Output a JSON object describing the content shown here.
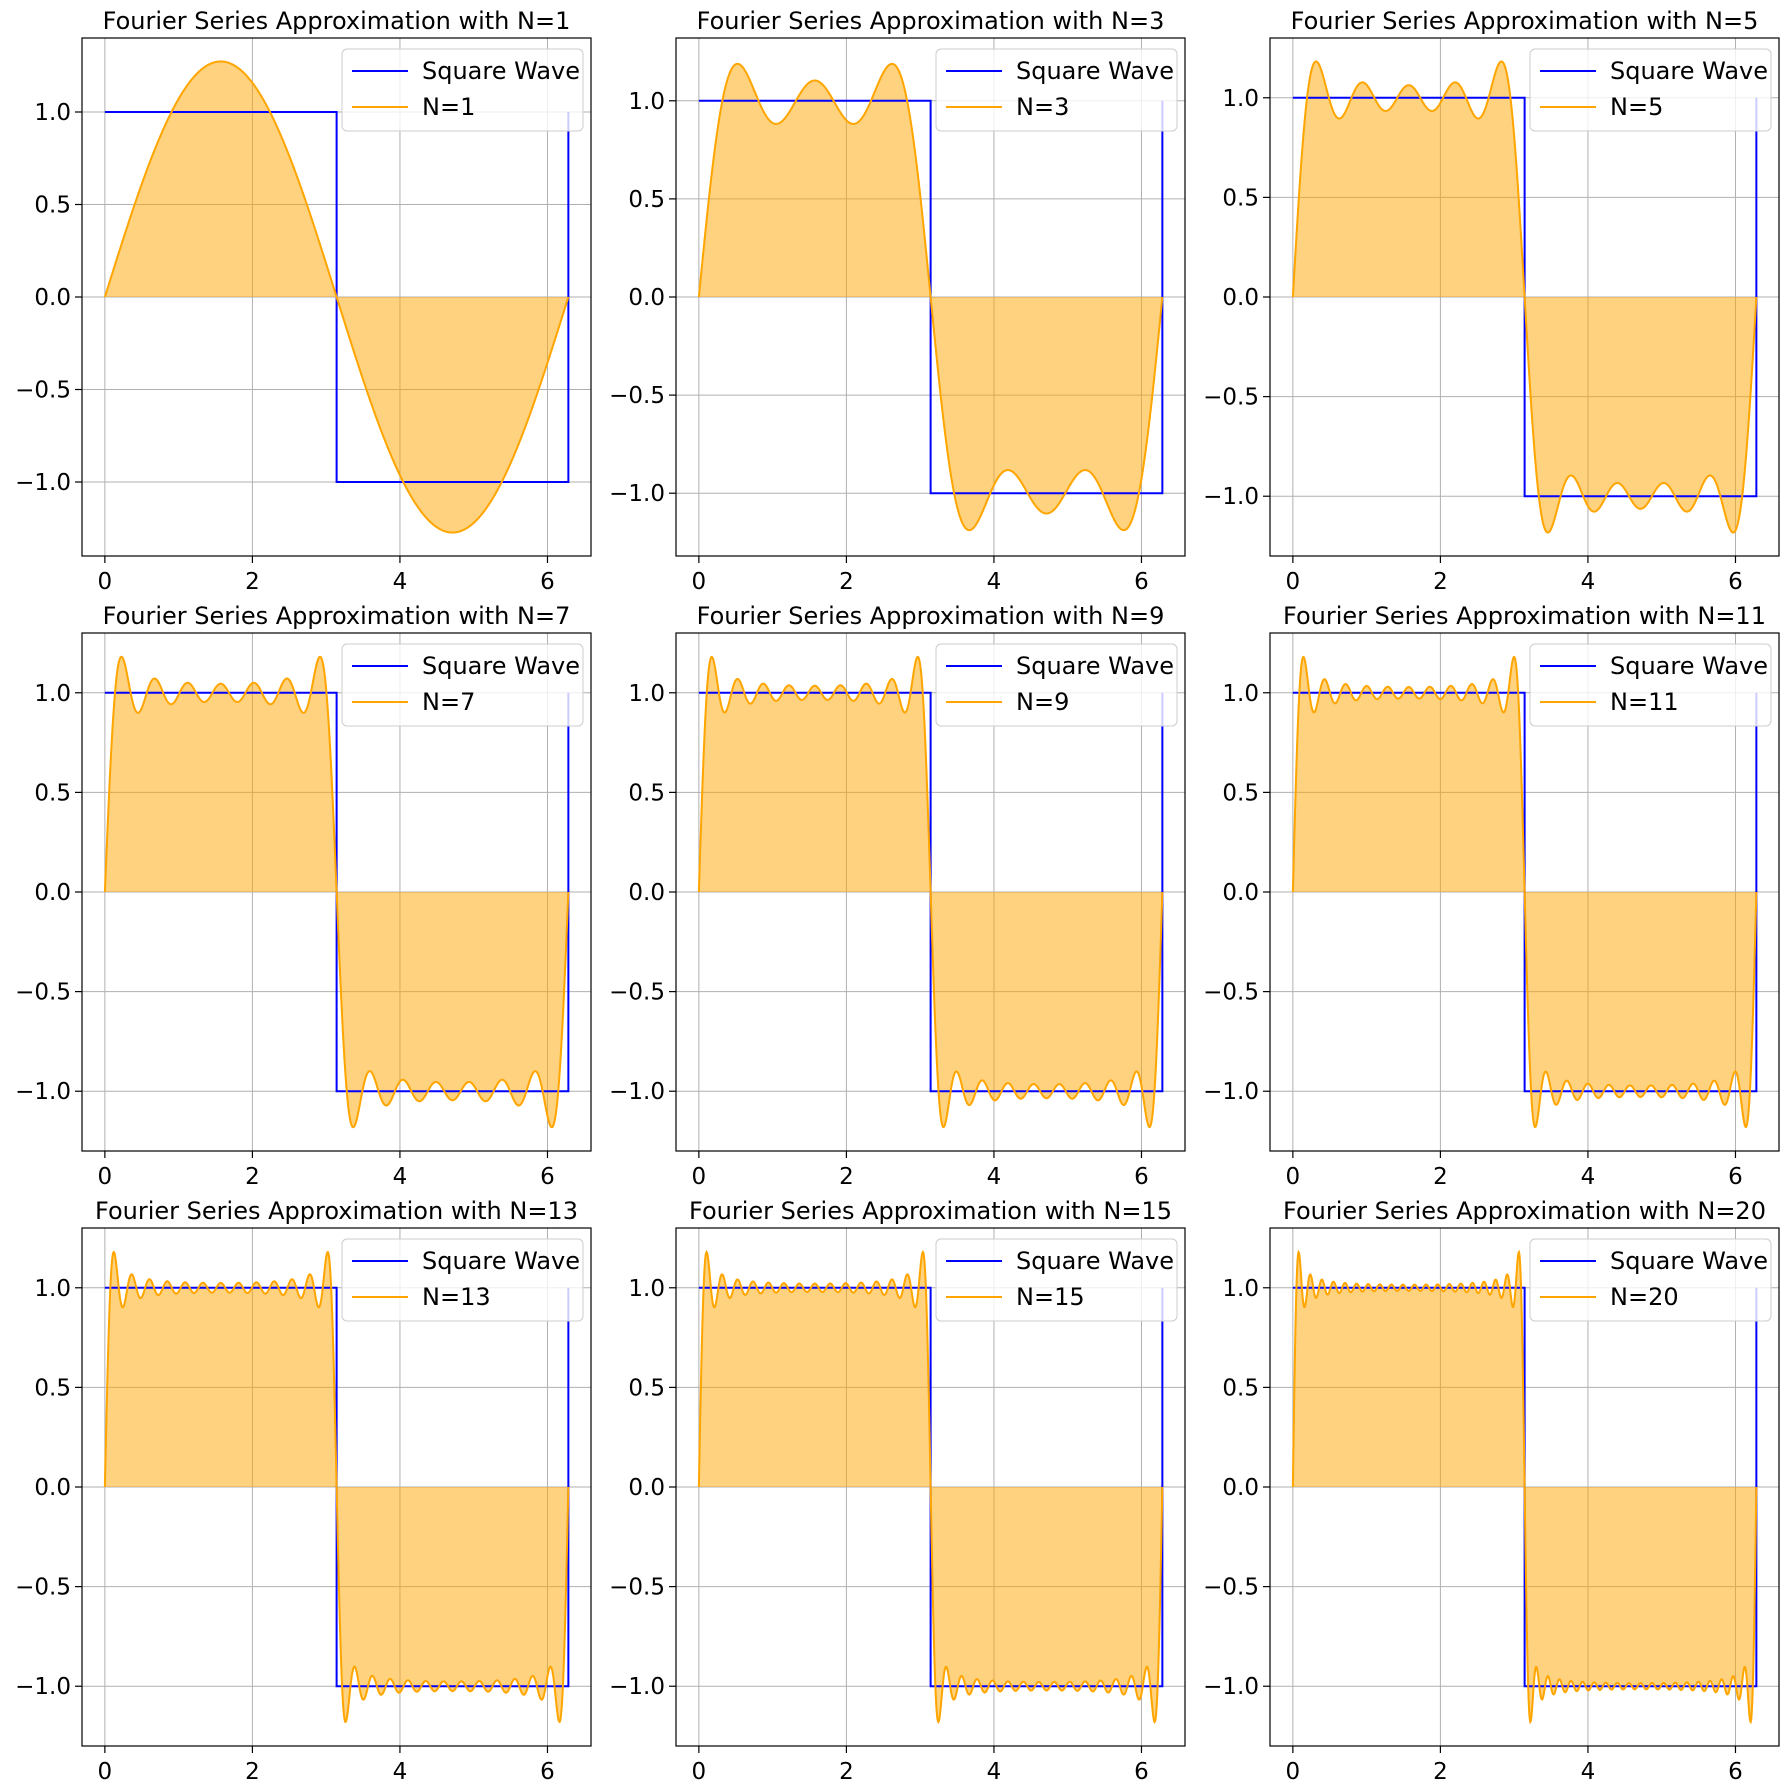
{
  "colors": {
    "square_wave": "#0000ff",
    "approximation": "#ffa500",
    "fill": "#ffa500",
    "grid": "#b0b0b0",
    "axes": "#000000"
  },
  "chart_data": [
    {
      "type": "line",
      "title": "Fourier Series Approximation with N=1",
      "N": 1,
      "series": [
        {
          "name": "Square Wave"
        },
        {
          "name": "N=1"
        }
      ],
      "xlim": [
        -0.31,
        6.59
      ],
      "ylim": [
        -1.4,
        1.4
      ],
      "xticks": [
        0,
        2,
        4,
        6
      ],
      "yticks": [
        -1.0,
        -0.5,
        0.0,
        0.5,
        1.0
      ],
      "grid": true,
      "legend": "top-right",
      "fill_between_approx_and_zero": true
    },
    {
      "type": "line",
      "title": "Fourier Series Approximation with N=3",
      "N": 3,
      "series": [
        {
          "name": "Square Wave"
        },
        {
          "name": "N=3"
        }
      ],
      "xlim": [
        -0.31,
        6.59
      ],
      "ylim": [
        -1.32,
        1.32
      ],
      "xticks": [
        0,
        2,
        4,
        6
      ],
      "yticks": [
        -1.0,
        -0.5,
        0.0,
        0.5,
        1.0
      ],
      "grid": true,
      "legend": "top-right",
      "fill_between_approx_and_zero": true
    },
    {
      "type": "line",
      "title": "Fourier Series Approximation with N=5",
      "N": 5,
      "series": [
        {
          "name": "Square Wave"
        },
        {
          "name": "N=5"
        }
      ],
      "xlim": [
        -0.31,
        6.59
      ],
      "ylim": [
        -1.3,
        1.3
      ],
      "xticks": [
        0,
        2,
        4,
        6
      ],
      "yticks": [
        -1.0,
        -0.5,
        0.0,
        0.5,
        1.0
      ],
      "grid": true,
      "legend": "top-right",
      "fill_between_approx_and_zero": true
    },
    {
      "type": "line",
      "title": "Fourier Series Approximation with N=7",
      "N": 7,
      "series": [
        {
          "name": "Square Wave"
        },
        {
          "name": "N=7"
        }
      ],
      "xlim": [
        -0.31,
        6.59
      ],
      "ylim": [
        -1.3,
        1.3
      ],
      "xticks": [
        0,
        2,
        4,
        6
      ],
      "yticks": [
        -1.0,
        -0.5,
        0.0,
        0.5,
        1.0
      ],
      "grid": true,
      "legend": "top-right",
      "fill_between_approx_and_zero": true
    },
    {
      "type": "line",
      "title": "Fourier Series Approximation with N=9",
      "N": 9,
      "series": [
        {
          "name": "Square Wave"
        },
        {
          "name": "N=9"
        }
      ],
      "xlim": [
        -0.31,
        6.59
      ],
      "ylim": [
        -1.3,
        1.3
      ],
      "xticks": [
        0,
        2,
        4,
        6
      ],
      "yticks": [
        -1.0,
        -0.5,
        0.0,
        0.5,
        1.0
      ],
      "grid": true,
      "legend": "top-right",
      "fill_between_approx_and_zero": true
    },
    {
      "type": "line",
      "title": "Fourier Series Approximation with N=11",
      "N": 11,
      "series": [
        {
          "name": "Square Wave"
        },
        {
          "name": "N=11"
        }
      ],
      "xlim": [
        -0.31,
        6.59
      ],
      "ylim": [
        -1.3,
        1.3
      ],
      "xticks": [
        0,
        2,
        4,
        6
      ],
      "yticks": [
        -1.0,
        -0.5,
        0.0,
        0.5,
        1.0
      ],
      "grid": true,
      "legend": "top-right",
      "fill_between_approx_and_zero": true
    },
    {
      "type": "line",
      "title": "Fourier Series Approximation with N=13",
      "N": 13,
      "series": [
        {
          "name": "Square Wave"
        },
        {
          "name": "N=13"
        }
      ],
      "xlim": [
        -0.31,
        6.59
      ],
      "ylim": [
        -1.3,
        1.3
      ],
      "xticks": [
        0,
        2,
        4,
        6
      ],
      "yticks": [
        -1.0,
        -0.5,
        0.0,
        0.5,
        1.0
      ],
      "grid": true,
      "legend": "top-right",
      "fill_between_approx_and_zero": true
    },
    {
      "type": "line",
      "title": "Fourier Series Approximation with N=15",
      "N": 15,
      "series": [
        {
          "name": "Square Wave"
        },
        {
          "name": "N=15"
        }
      ],
      "xlim": [
        -0.31,
        6.59
      ],
      "ylim": [
        -1.3,
        1.3
      ],
      "xticks": [
        0,
        2,
        4,
        6
      ],
      "yticks": [
        -1.0,
        -0.5,
        0.0,
        0.5,
        1.0
      ],
      "grid": true,
      "legend": "top-right",
      "fill_between_approx_and_zero": true
    },
    {
      "type": "line",
      "title": "Fourier Series Approximation with N=20",
      "N": 20,
      "series": [
        {
          "name": "Square Wave"
        },
        {
          "name": "N=20"
        }
      ],
      "xlim": [
        -0.31,
        6.59
      ],
      "ylim": [
        -1.3,
        1.3
      ],
      "xticks": [
        0,
        2,
        4,
        6
      ],
      "yticks": [
        -1.0,
        -0.5,
        0.0,
        0.5,
        1.0
      ],
      "grid": true,
      "legend": "top-right",
      "fill_between_approx_and_zero": true
    }
  ]
}
